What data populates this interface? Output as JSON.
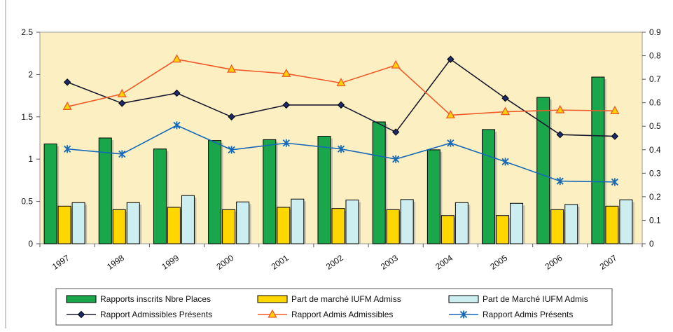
{
  "chart_data": {
    "type": "bar",
    "categories": [
      "1997",
      "1998",
      "1999",
      "2000",
      "2001",
      "2002",
      "2003",
      "2004",
      "2005",
      "2006",
      "2007"
    ],
    "left_axis": {
      "ylim": [
        0,
        2.5
      ],
      "ticks": [
        "0",
        "0.5",
        "1",
        "1.5",
        "2",
        "2.5"
      ],
      "tick_values": [
        0,
        0.5,
        1,
        1.5,
        2,
        2.5
      ]
    },
    "right_axis": {
      "ylim": [
        0,
        0.9
      ],
      "ticks": [
        "0",
        "0.1",
        "0.2",
        "0.3",
        "0.4",
        "0.5",
        "0.6",
        "0.7",
        "0.8",
        "0.9"
      ],
      "tick_values": [
        0,
        0.1,
        0.2,
        0.3,
        0.4,
        0.5,
        0.6,
        0.7,
        0.8,
        0.9
      ]
    },
    "bar_series": [
      {
        "name": "Rapports inscrits Nbre Places",
        "axis": "left",
        "color": "#1aa64a",
        "values": [
          1.18,
          1.25,
          1.12,
          1.22,
          1.23,
          1.27,
          1.44,
          1.11,
          1.35,
          1.73,
          1.97
        ]
      },
      {
        "name": "Part  de marché IUFM Admiss",
        "axis": "right",
        "color": "#ffd700",
        "values": [
          0.16,
          0.145,
          0.155,
          0.145,
          0.155,
          0.15,
          0.145,
          0.12,
          0.12,
          0.145,
          0.16
        ]
      },
      {
        "name": "Part de Marché IUFM Admis",
        "axis": "right",
        "color": "#cdeef0",
        "values": [
          0.175,
          0.175,
          0.205,
          0.178,
          0.19,
          0.186,
          0.188,
          0.175,
          0.172,
          0.167,
          0.187
        ]
      }
    ],
    "line_series": [
      {
        "name": "Rapport Admissibles Présents",
        "axis": "left",
        "color": "#1a1a2e",
        "marker": "diamond",
        "values": [
          1.91,
          1.66,
          1.78,
          1.5,
          1.64,
          1.64,
          1.32,
          2.18,
          1.72,
          1.29,
          1.27
        ]
      },
      {
        "name": "Rapport Admis Admissibles",
        "axis": "left",
        "color": "#f05a28",
        "marker": "triangle",
        "values": [
          1.62,
          1.77,
          2.18,
          2.06,
          2.01,
          1.9,
          2.11,
          1.52,
          1.56,
          1.58,
          1.57
        ]
      },
      {
        "name": "Rapport Admis Présents",
        "axis": "left",
        "color": "#1668b8",
        "marker": "star",
        "values": [
          1.12,
          1.06,
          1.4,
          1.11,
          1.19,
          1.12,
          1.0,
          1.19,
          0.97,
          0.74,
          0.73
        ]
      }
    ],
    "grid": false,
    "plot_background": "#fcf0c2",
    "legend_position": "bottom"
  }
}
